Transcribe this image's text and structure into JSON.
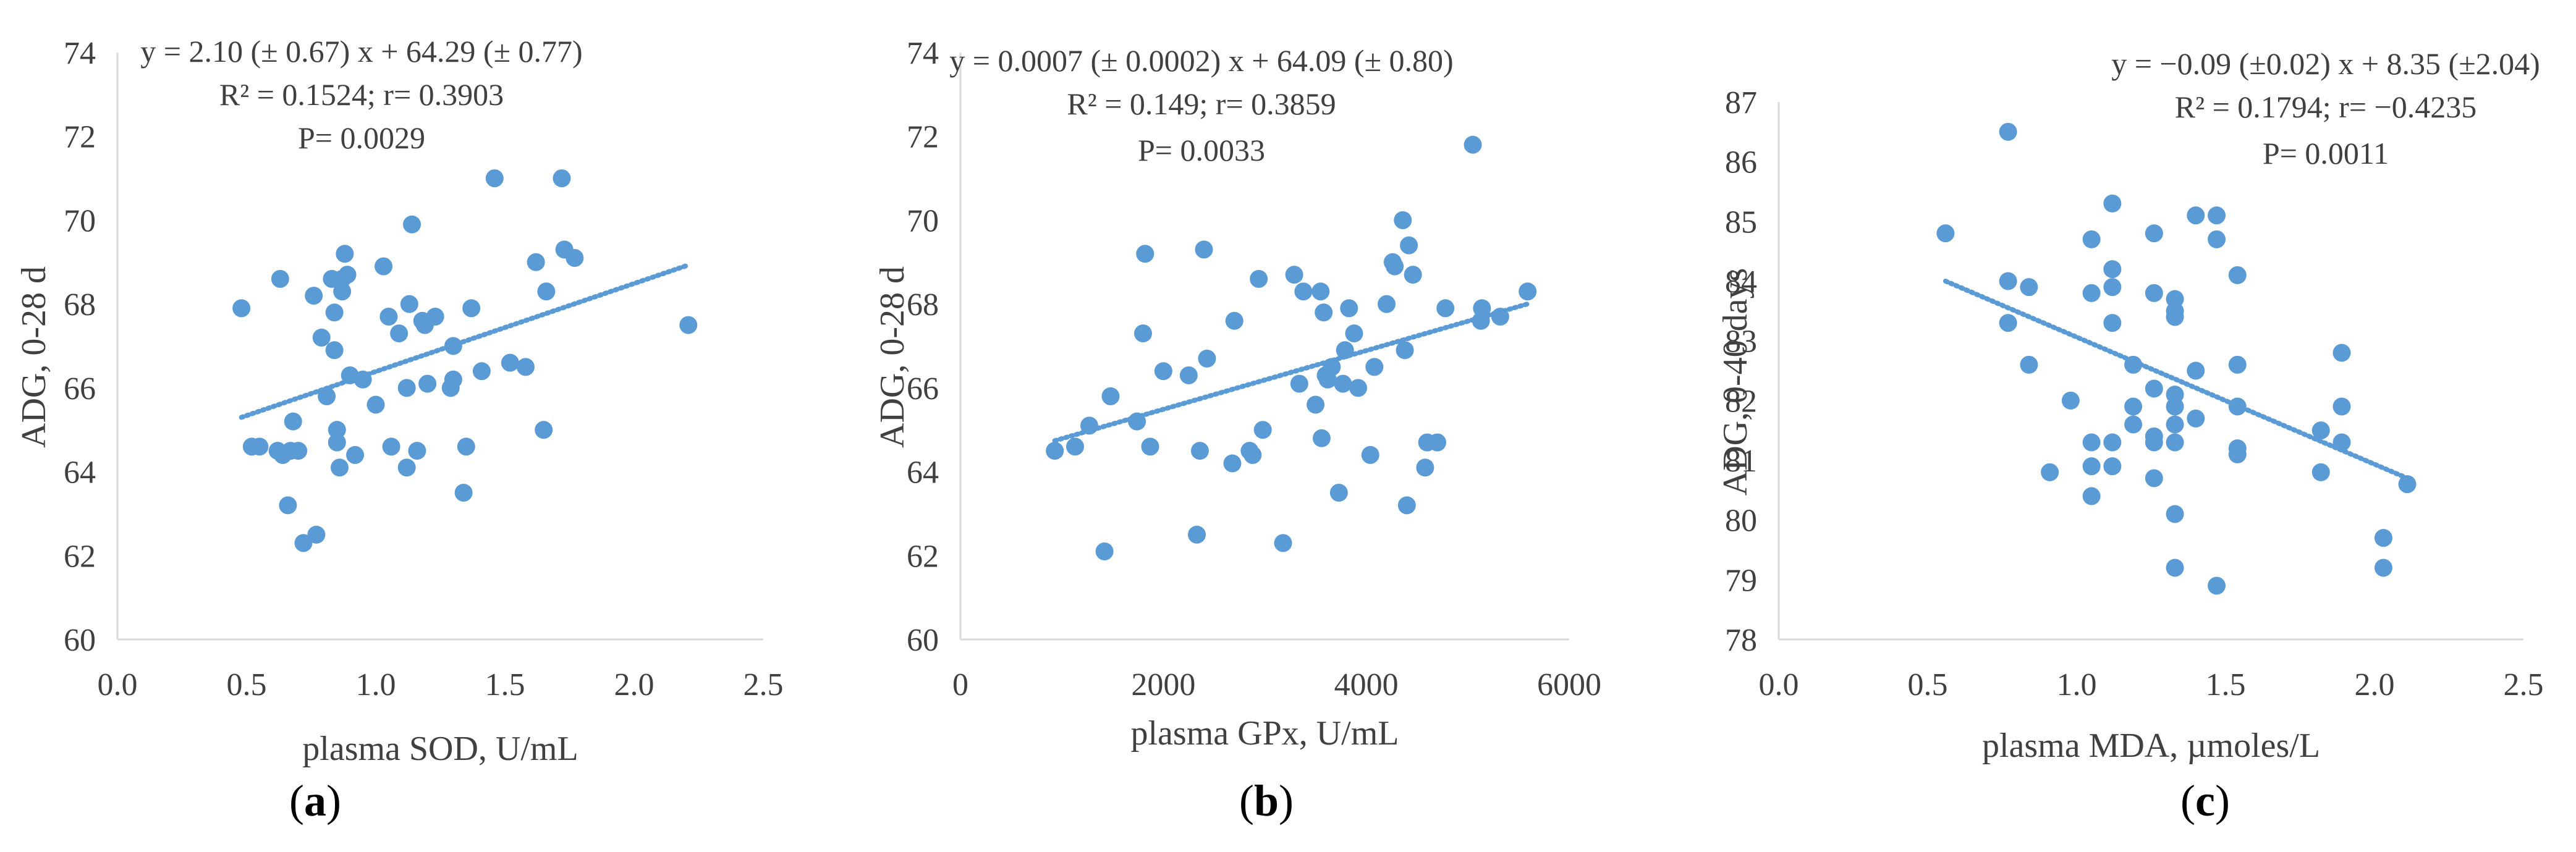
{
  "colors": {
    "marker": "#5B9BD5",
    "axis": "#D9D9D9",
    "text": "#404040",
    "caption": "#000000"
  },
  "chart_data": [
    {
      "type": "scatter",
      "panel_label": "a",
      "xlabel": "plasma SOD, U/mL",
      "ylabel": "ADG,  0-28 d",
      "xlim": [
        0.0,
        2.5
      ],
      "ylim": [
        60,
        74
      ],
      "xticks": [
        "0.0",
        "0.5",
        "1.0",
        "1.5",
        "2.0",
        "2.5"
      ],
      "yticks": [
        "60",
        "62",
        "64",
        "66",
        "68",
        "70",
        "72",
        "74"
      ],
      "xtick_values": [
        0,
        0.5,
        1.0,
        1.5,
        2.0,
        2.5
      ],
      "ytick_values": [
        60,
        62,
        64,
        66,
        68,
        70,
        72,
        74
      ],
      "annotation": [
        "y = 2.10 (± 0.67) x + 64.29 (± 0.77)",
        "R² = 0.1524; r= 0.3903",
        "P= 0.0029"
      ],
      "trend": {
        "slope": 2.1,
        "intercept": 64.29,
        "x_range": [
          0.48,
          2.2
        ]
      },
      "points": [
        [
          0.48,
          67.9
        ],
        [
          0.52,
          64.6
        ],
        [
          0.55,
          64.6
        ],
        [
          0.62,
          64.5
        ],
        [
          0.64,
          64.4
        ],
        [
          0.63,
          68.6
        ],
        [
          0.66,
          63.2
        ],
        [
          0.67,
          64.5
        ],
        [
          0.68,
          65.2
        ],
        [
          0.7,
          64.5
        ],
        [
          0.72,
          62.3
        ],
        [
          0.76,
          68.2
        ],
        [
          0.77,
          62.5
        ],
        [
          0.79,
          67.2
        ],
        [
          0.81,
          65.8
        ],
        [
          0.83,
          68.6
        ],
        [
          0.84,
          67.8
        ],
        [
          0.84,
          66.9
        ],
        [
          0.85,
          64.7
        ],
        [
          0.85,
          65.0
        ],
        [
          0.86,
          64.1
        ],
        [
          0.87,
          68.3
        ],
        [
          0.87,
          68.6
        ],
        [
          0.88,
          69.2
        ],
        [
          0.89,
          68.7
        ],
        [
          0.9,
          66.3
        ],
        [
          0.92,
          64.4
        ],
        [
          0.95,
          66.2
        ],
        [
          1.0,
          65.6
        ],
        [
          1.03,
          68.9
        ],
        [
          1.05,
          67.7
        ],
        [
          1.06,
          64.6
        ],
        [
          1.09,
          67.3
        ],
        [
          1.12,
          64.1
        ],
        [
          1.12,
          66.0
        ],
        [
          1.13,
          68.0
        ],
        [
          1.14,
          69.9
        ],
        [
          1.16,
          64.5
        ],
        [
          1.18,
          67.6
        ],
        [
          1.19,
          67.5
        ],
        [
          1.2,
          66.1
        ],
        [
          1.23,
          67.7
        ],
        [
          1.29,
          66.0
        ],
        [
          1.3,
          66.2
        ],
        [
          1.3,
          67.0
        ],
        [
          1.34,
          63.5
        ],
        [
          1.35,
          64.6
        ],
        [
          1.37,
          67.9
        ],
        [
          1.41,
          66.4
        ],
        [
          1.46,
          71.0
        ],
        [
          1.52,
          66.6
        ],
        [
          1.58,
          66.5
        ],
        [
          1.62,
          69.0
        ],
        [
          1.65,
          65.0
        ],
        [
          1.66,
          68.3
        ],
        [
          1.72,
          71.0
        ],
        [
          1.73,
          69.3
        ],
        [
          1.77,
          69.1
        ],
        [
          2.21,
          67.5
        ]
      ]
    },
    {
      "type": "scatter",
      "panel_label": "b",
      "xlabel": "plasma GPx, U/mL",
      "ylabel": "ADG,  0-28 d",
      "xlim": [
        0,
        6000
      ],
      "ylim": [
        60,
        74
      ],
      "xticks": [
        "0",
        "2000",
        "4000",
        "6000"
      ],
      "yticks": [
        "60",
        "62",
        "64",
        "66",
        "68",
        "70",
        "72",
        "74"
      ],
      "xtick_values": [
        0,
        2000,
        4000,
        6000
      ],
      "ytick_values": [
        60,
        62,
        64,
        66,
        68,
        70,
        72,
        74
      ],
      "annotation": [
        "y = 0.0007 (± 0.0002) x + 64.09 (± 0.80)",
        "R² = 0.149; r= 0.3859",
        "P= 0.0033"
      ],
      "trend": {
        "slope": 0.0007,
        "intercept": 64.09,
        "x_range": [
          930,
          5600
        ]
      },
      "points": [
        [
          930,
          64.5
        ],
        [
          1130,
          64.6
        ],
        [
          1270,
          65.1
        ],
        [
          1420,
          62.1
        ],
        [
          1480,
          65.8
        ],
        [
          1740,
          65.2
        ],
        [
          1800,
          67.3
        ],
        [
          1820,
          69.2
        ],
        [
          1870,
          64.6
        ],
        [
          2000,
          66.4
        ],
        [
          2250,
          66.3
        ],
        [
          2330,
          62.5
        ],
        [
          2360,
          64.5
        ],
        [
          2400,
          69.3
        ],
        [
          2430,
          66.7
        ],
        [
          2680,
          64.2
        ],
        [
          2700,
          67.6
        ],
        [
          2850,
          64.5
        ],
        [
          2880,
          64.4
        ],
        [
          2940,
          68.6
        ],
        [
          2980,
          65.0
        ],
        [
          3180,
          62.3
        ],
        [
          3290,
          68.7
        ],
        [
          3340,
          66.1
        ],
        [
          3380,
          68.3
        ],
        [
          3500,
          65.6
        ],
        [
          3550,
          68.3
        ],
        [
          3560,
          64.8
        ],
        [
          3580,
          67.8
        ],
        [
          3600,
          66.3
        ],
        [
          3620,
          66.2
        ],
        [
          3660,
          66.5
        ],
        [
          3730,
          63.5
        ],
        [
          3770,
          66.1
        ],
        [
          3790,
          66.9
        ],
        [
          3830,
          67.9
        ],
        [
          3880,
          67.3
        ],
        [
          3920,
          66.0
        ],
        [
          4040,
          64.4
        ],
        [
          4080,
          66.5
        ],
        [
          4200,
          68.0
        ],
        [
          4260,
          69.0
        ],
        [
          4280,
          68.9
        ],
        [
          4360,
          70.0
        ],
        [
          4380,
          66.9
        ],
        [
          4400,
          63.2
        ],
        [
          4420,
          69.4
        ],
        [
          4460,
          68.7
        ],
        [
          4580,
          64.1
        ],
        [
          4600,
          64.7
        ],
        [
          4700,
          64.7
        ],
        [
          4780,
          67.9
        ],
        [
          5050,
          71.8
        ],
        [
          5130,
          67.6
        ],
        [
          5140,
          67.9
        ],
        [
          5320,
          67.7
        ],
        [
          5590,
          68.3
        ]
      ]
    },
    {
      "type": "scatter",
      "panel_label": "c",
      "xlabel": "plasma MDA, µmoles/L",
      "ylabel": "ADG,  0-40 days",
      "xlim": [
        0.0,
        2.5
      ],
      "ylim": [
        78,
        87
      ],
      "xticks": [
        "0.0",
        "0.5",
        "1.0",
        "1.5",
        "2.0",
        "2.5"
      ],
      "yticks": [
        "78",
        "79",
        "80",
        "81",
        "82",
        "83",
        "84",
        "85",
        "86",
        "87"
      ],
      "xtick_values": [
        0,
        0.5,
        1.0,
        1.5,
        2.0,
        2.5
      ],
      "ytick_values": [
        78,
        79,
        80,
        81,
        82,
        83,
        84,
        85,
        86,
        87
      ],
      "annotation": [
        "y = −0.09 (±0.02) x + 8.35 (±2.04)",
        "R² = 0.1794;  r= −0.4235",
        "P= 0.0011"
      ],
      "trend": {
        "x_range": [
          0.56,
          2.11
        ],
        "y_range": [
          84.0,
          80.7
        ]
      },
      "points": [
        [
          0.56,
          84.8
        ],
        [
          0.77,
          86.5
        ],
        [
          0.77,
          84.0
        ],
        [
          0.77,
          83.3
        ],
        [
          0.84,
          83.9
        ],
        [
          0.84,
          82.6
        ],
        [
          0.91,
          80.8
        ],
        [
          0.98,
          82.0
        ],
        [
          1.05,
          84.7
        ],
        [
          1.05,
          83.8
        ],
        [
          1.05,
          81.3
        ],
        [
          1.05,
          80.9
        ],
        [
          1.05,
          80.4
        ],
        [
          1.12,
          85.3
        ],
        [
          1.12,
          84.2
        ],
        [
          1.12,
          83.9
        ],
        [
          1.12,
          83.3
        ],
        [
          1.12,
          81.3
        ],
        [
          1.12,
          80.9
        ],
        [
          1.19,
          82.6
        ],
        [
          1.19,
          81.9
        ],
        [
          1.19,
          81.6
        ],
        [
          1.26,
          84.8
        ],
        [
          1.26,
          83.8
        ],
        [
          1.26,
          82.2
        ],
        [
          1.26,
          81.4
        ],
        [
          1.26,
          81.3
        ],
        [
          1.26,
          80.7
        ],
        [
          1.33,
          83.7
        ],
        [
          1.33,
          83.5
        ],
        [
          1.33,
          83.4
        ],
        [
          1.33,
          82.1
        ],
        [
          1.33,
          81.9
        ],
        [
          1.33,
          81.6
        ],
        [
          1.33,
          81.3
        ],
        [
          1.33,
          80.1
        ],
        [
          1.33,
          79.2
        ],
        [
          1.4,
          85.1
        ],
        [
          1.4,
          82.5
        ],
        [
          1.4,
          81.7
        ],
        [
          1.47,
          85.1
        ],
        [
          1.47,
          84.7
        ],
        [
          1.47,
          78.9
        ],
        [
          1.54,
          84.1
        ],
        [
          1.54,
          82.6
        ],
        [
          1.54,
          81.9
        ],
        [
          1.54,
          81.2
        ],
        [
          1.54,
          81.1
        ],
        [
          1.82,
          81.5
        ],
        [
          1.82,
          80.8
        ],
        [
          1.89,
          82.8
        ],
        [
          1.89,
          81.9
        ],
        [
          1.89,
          81.3
        ],
        [
          2.03,
          79.7
        ],
        [
          2.03,
          79.2
        ],
        [
          2.11,
          80.6
        ]
      ]
    }
  ]
}
